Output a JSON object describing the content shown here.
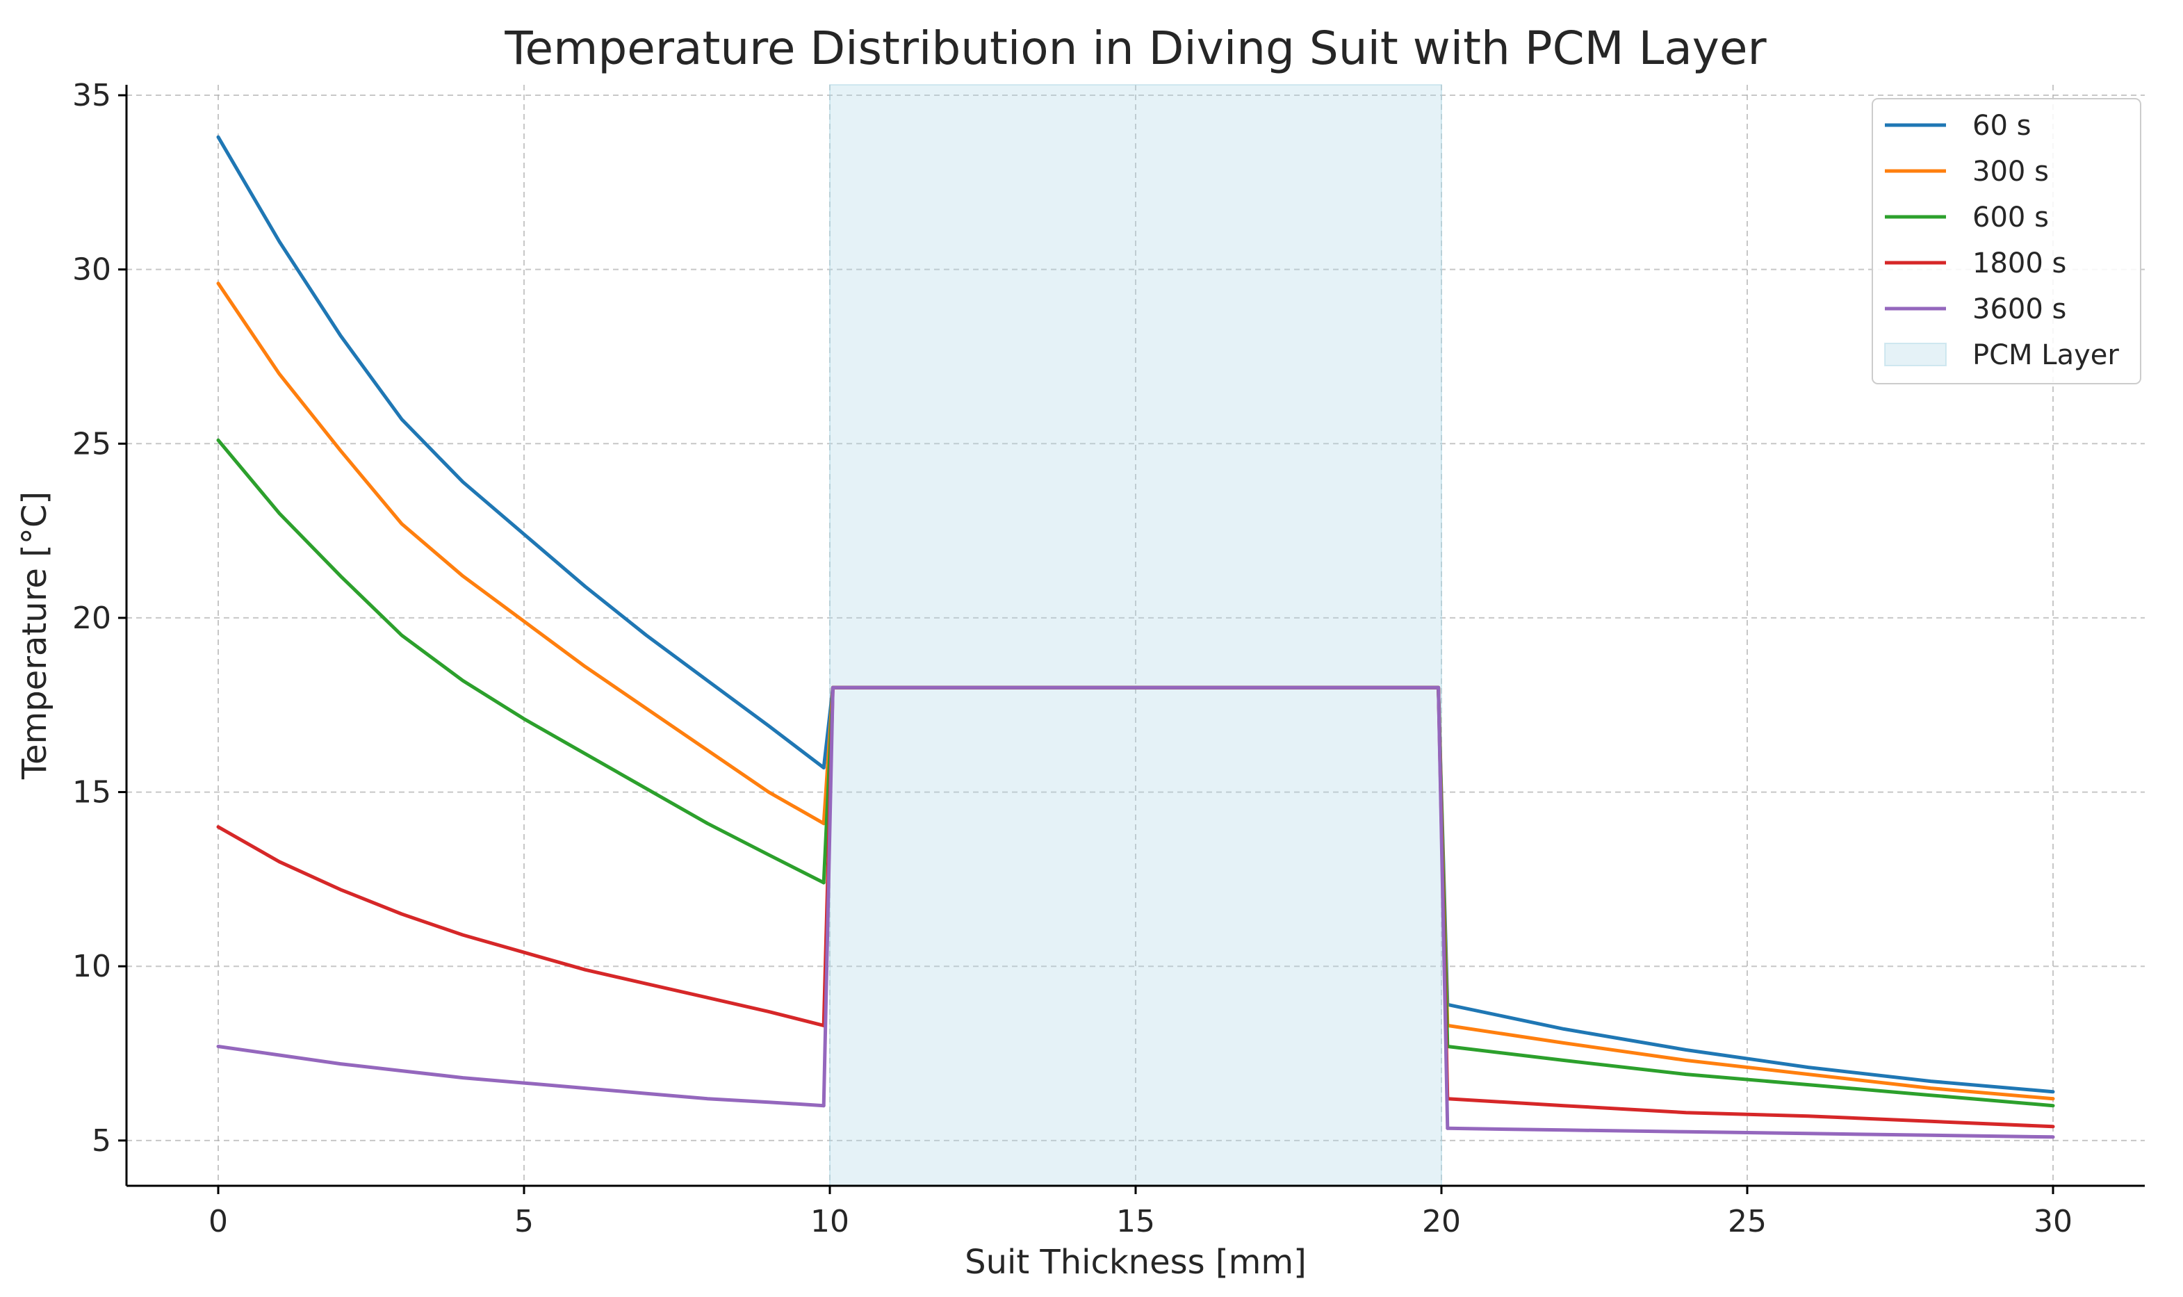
{
  "chart_data": {
    "type": "line",
    "title": "Temperature Distribution in Diving Suit with PCM Layer",
    "xlabel": "Suit Thickness [mm]",
    "ylabel": "Temperature [°C]",
    "xlim": [
      -1.5,
      31.5
    ],
    "ylim": [
      3.7,
      35.3
    ],
    "xticks": [
      0,
      5,
      10,
      15,
      20,
      25,
      30
    ],
    "yticks": [
      5,
      10,
      15,
      20,
      25,
      30,
      35
    ],
    "xtick_labels": [
      "0",
      "5",
      "10",
      "15",
      "20",
      "25",
      "30"
    ],
    "ytick_labels": [
      "5",
      "10",
      "15",
      "20",
      "25",
      "30",
      "35"
    ],
    "grid": true,
    "legend_position": "top-right",
    "shaded_region": {
      "label": "PCM Layer",
      "x_start": 10,
      "x_end": 20,
      "color": "#add8e6"
    },
    "pcm_temperature": 18,
    "series": [
      {
        "name": "60 s",
        "color": "#1f77b4",
        "segments": [
          {
            "x": [
              0,
              1,
              2,
              3,
              4,
              5,
              6,
              7,
              8,
              9,
              9.9
            ],
            "y": [
              33.8,
              30.8,
              28.1,
              25.7,
              23.9,
              22.4,
              20.9,
              19.5,
              18.2,
              16.9,
              15.7
            ]
          },
          {
            "x": [
              9.9,
              10.05,
              19.95,
              20.1
            ],
            "y": [
              15.7,
              18,
              18,
              8.9
            ]
          },
          {
            "x": [
              20.1,
              22,
              24,
              26,
              28,
              30
            ],
            "y": [
              8.9,
              8.2,
              7.6,
              7.1,
              6.7,
              6.4
            ]
          }
        ]
      },
      {
        "name": "300 s",
        "color": "#ff7f0e",
        "segments": [
          {
            "x": [
              0,
              1,
              2,
              3,
              4,
              5,
              6,
              7,
              8,
              9,
              9.9
            ],
            "y": [
              29.6,
              27.0,
              24.8,
              22.7,
              21.2,
              19.9,
              18.6,
              17.4,
              16.2,
              15.0,
              14.1
            ]
          },
          {
            "x": [
              9.9,
              10.05,
              19.95,
              20.1
            ],
            "y": [
              14.1,
              18,
              18,
              8.3
            ]
          },
          {
            "x": [
              20.1,
              22,
              24,
              26,
              28,
              30
            ],
            "y": [
              8.3,
              7.8,
              7.3,
              6.9,
              6.5,
              6.2
            ]
          }
        ]
      },
      {
        "name": "600 s",
        "color": "#2ca02c",
        "segments": [
          {
            "x": [
              0,
              1,
              2,
              3,
              4,
              5,
              6,
              7,
              8,
              9,
              9.9
            ],
            "y": [
              25.1,
              23.0,
              21.2,
              19.5,
              18.2,
              17.1,
              16.1,
              15.1,
              14.1,
              13.2,
              12.4
            ]
          },
          {
            "x": [
              9.9,
              10.05,
              19.95,
              20.1
            ],
            "y": [
              12.4,
              18,
              18,
              7.7
            ]
          },
          {
            "x": [
              20.1,
              22,
              24,
              26,
              28,
              30
            ],
            "y": [
              7.7,
              7.3,
              6.9,
              6.6,
              6.3,
              6.0
            ]
          }
        ]
      },
      {
        "name": "1800 s",
        "color": "#d62728",
        "segments": [
          {
            "x": [
              0,
              1,
              2,
              3,
              4,
              5,
              6,
              7,
              8,
              9,
              9.9
            ],
            "y": [
              14.0,
              13.0,
              12.2,
              11.5,
              10.9,
              10.4,
              9.9,
              9.5,
              9.1,
              8.7,
              8.3
            ]
          },
          {
            "x": [
              9.9,
              10.05,
              19.95,
              20.1
            ],
            "y": [
              8.3,
              18,
              18,
              6.2
            ]
          },
          {
            "x": [
              20.1,
              22,
              24,
              26,
              28,
              30
            ],
            "y": [
              6.2,
              6.0,
              5.8,
              5.7,
              5.55,
              5.4
            ]
          }
        ]
      },
      {
        "name": "3600 s",
        "color": "#9467bd",
        "segments": [
          {
            "x": [
              0,
              1,
              2,
              3,
              4,
              5,
              6,
              7,
              8,
              9,
              9.9
            ],
            "y": [
              7.7,
              7.45,
              7.2,
              7.0,
              6.8,
              6.65,
              6.5,
              6.35,
              6.2,
              6.1,
              6.0
            ]
          },
          {
            "x": [
              9.9,
              10.05,
              19.95,
              20.1
            ],
            "y": [
              6.0,
              18,
              18,
              5.35
            ]
          },
          {
            "x": [
              20.1,
              22,
              24,
              26,
              28,
              30
            ],
            "y": [
              5.35,
              5.3,
              5.25,
              5.2,
              5.15,
              5.1
            ]
          }
        ]
      }
    ]
  }
}
